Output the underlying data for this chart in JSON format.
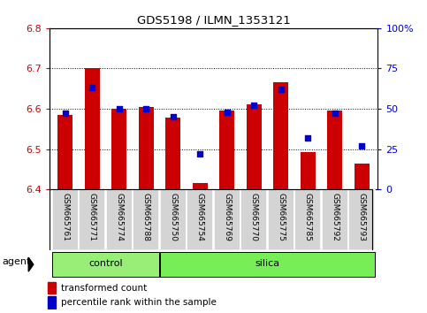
{
  "title": "GDS5198 / ILMN_1353121",
  "samples": [
    "GSM665761",
    "GSM665771",
    "GSM665774",
    "GSM665788",
    "GSM665750",
    "GSM665754",
    "GSM665769",
    "GSM665770",
    "GSM665775",
    "GSM665785",
    "GSM665792",
    "GSM665793"
  ],
  "groups": [
    "control",
    "control",
    "control",
    "control",
    "silica",
    "silica",
    "silica",
    "silica",
    "silica",
    "silica",
    "silica",
    "silica"
  ],
  "red_values": [
    6.585,
    6.7,
    6.6,
    6.605,
    6.578,
    6.415,
    6.595,
    6.61,
    6.665,
    6.493,
    6.595,
    6.465
  ],
  "blue_values_pct": [
    47,
    63,
    50,
    50,
    45,
    22,
    48,
    52,
    62,
    32,
    47,
    27
  ],
  "ylim_left": [
    6.4,
    6.8
  ],
  "ylim_right": [
    0,
    100
  ],
  "yticks_left": [
    6.4,
    6.5,
    6.6,
    6.7,
    6.8
  ],
  "yticks_right": [
    0,
    25,
    50,
    75,
    100
  ],
  "ytick_labels_right": [
    "0",
    "25",
    "50",
    "75",
    "100%"
  ],
  "bar_bottom": 6.4,
  "bar_color": "#cc0000",
  "dot_color": "#0000cc",
  "control_color": "#99ee77",
  "silica_color": "#77ee55",
  "legend_bar_label": "transformed count",
  "legend_dot_label": "percentile rank within the sample",
  "agent_label": "agent",
  "group_label_control": "control",
  "group_label_silica": "silica",
  "background_color": "#ffffff",
  "plot_bg_color": "#ffffff",
  "tick_label_color_left": "#cc0000",
  "tick_label_color_right": "#0000cc",
  "grid_color": "#000000",
  "label_box_color": "#d4d4d4",
  "bar_width": 0.55
}
